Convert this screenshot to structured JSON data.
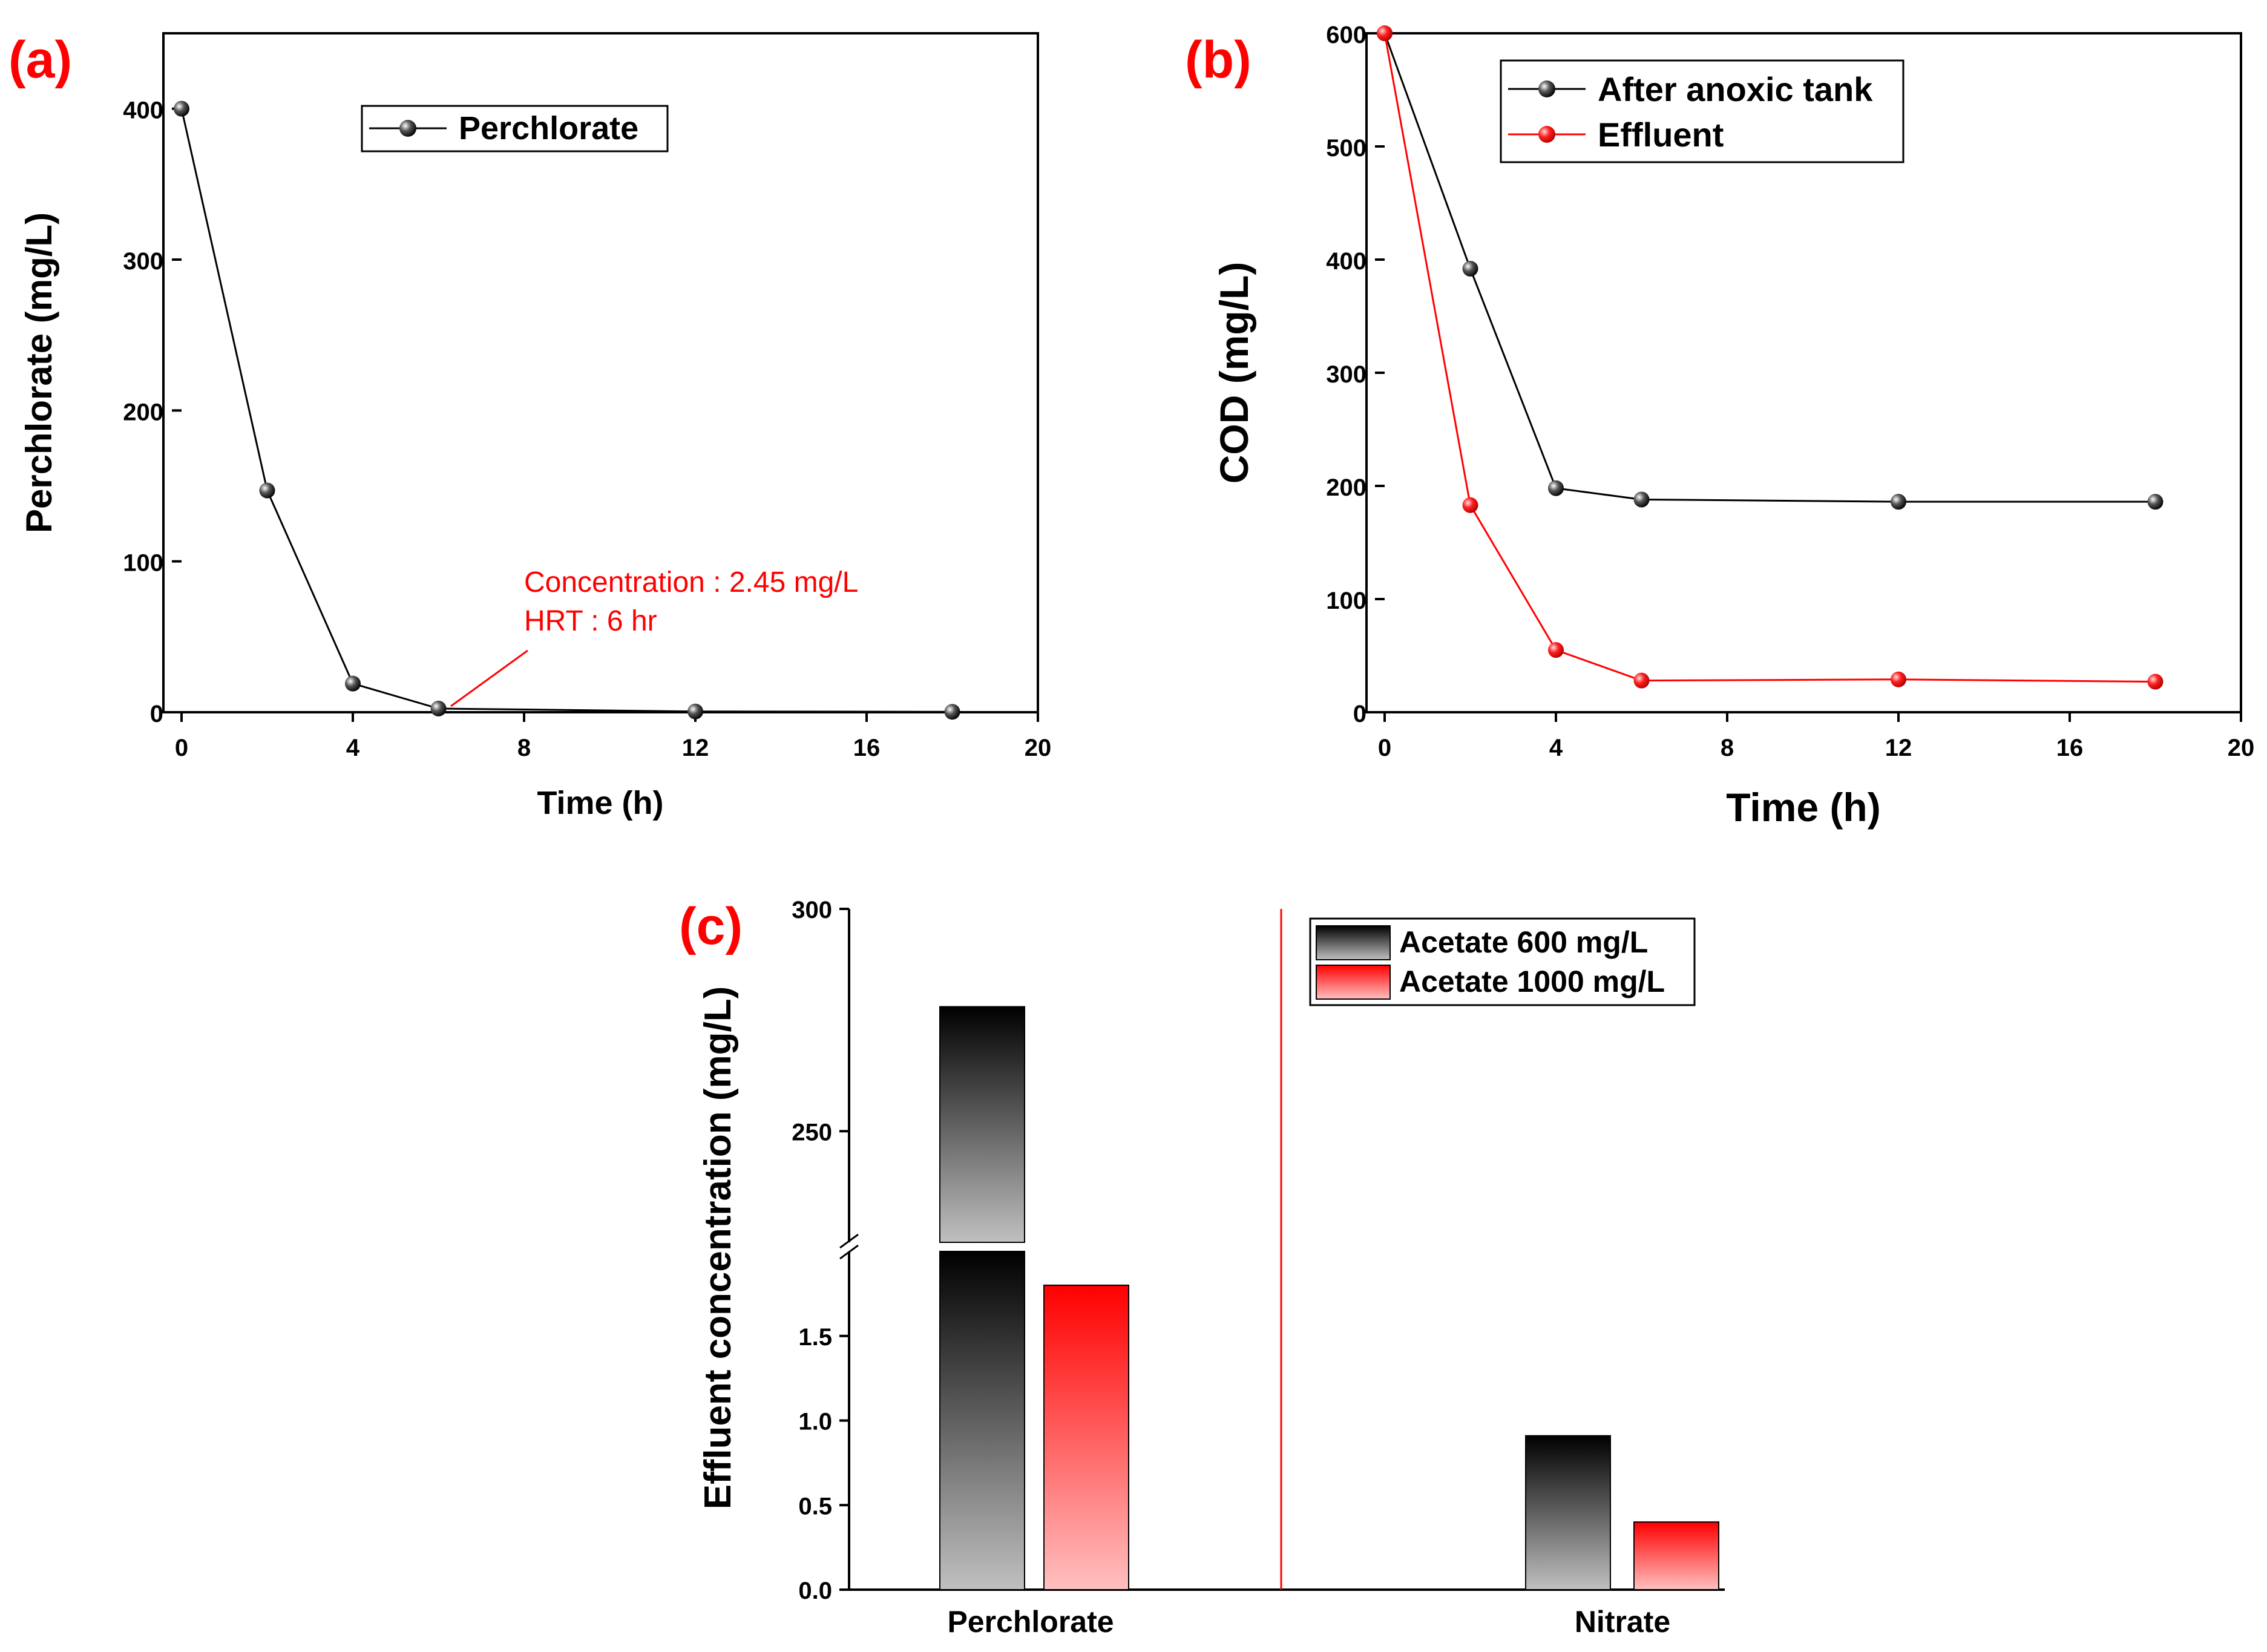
{
  "colors": {
    "black": "#000000",
    "red": "#ff0000",
    "gray_light": "#c0c0c0",
    "red_light": "#ffc0c0"
  },
  "chart_data": [
    {
      "panel_label": "(a)",
      "type": "line",
      "xlabel": "Time (h)",
      "ylabel": "Perchlorate (mg/L)",
      "xlim": [
        0,
        20
      ],
      "ylim": [
        0,
        450
      ],
      "xticks": [
        0,
        4,
        8,
        12,
        16,
        20
      ],
      "yticks": [
        0,
        100,
        200,
        300,
        400
      ],
      "legend_position": "top-center",
      "series": [
        {
          "name": "Perchlorate",
          "color": "#000000",
          "x": [
            0,
            2,
            4,
            6,
            12,
            18
          ],
          "y": [
            400,
            147,
            19,
            2.45,
            0.5,
            0.3
          ]
        }
      ],
      "annotation": {
        "lines": [
          "Concentration : 2.45 mg/L",
          "HRT : 6 hr"
        ],
        "color": "#ff0000",
        "points_to": {
          "x": 6,
          "y": 2.45
        }
      }
    },
    {
      "panel_label": "(b)",
      "type": "line",
      "xlabel": "Time (h)",
      "ylabel": "COD (mg/L)",
      "xlim": [
        0,
        20
      ],
      "ylim": [
        0,
        600
      ],
      "xticks": [
        0,
        4,
        8,
        12,
        16,
        20
      ],
      "yticks": [
        0,
        100,
        200,
        300,
        400,
        500,
        600
      ],
      "legend_position": "top-right",
      "series": [
        {
          "name": "After anoxic tank",
          "color": "#000000",
          "x": [
            0,
            2,
            4,
            6,
            12,
            18
          ],
          "y": [
            600,
            392,
            198,
            188,
            186,
            186
          ]
        },
        {
          "name": "Effluent",
          "color": "#ff0000",
          "x": [
            0,
            2,
            4,
            6,
            12,
            18
          ],
          "y": [
            600,
            183,
            55,
            28,
            29,
            27
          ]
        }
      ]
    },
    {
      "panel_label": "(c)",
      "type": "bar",
      "ylabel": "Effluent concentration (mg/L)",
      "categories": [
        "Perchlorate",
        "Nitrate"
      ],
      "broken_axis": {
        "lower": [
          0,
          2.0
        ],
        "upper": [
          225,
          300
        ]
      },
      "yticks_lower": [
        0.0,
        0.5,
        1.0,
        1.5
      ],
      "yticks_upper": [
        250,
        300
      ],
      "ytick_labels_lower": [
        "0.0",
        "0.5",
        "1.0",
        "1.5"
      ],
      "ytick_labels_upper": [
        "250",
        "300"
      ],
      "legend_position": "top-right",
      "series": [
        {
          "name": "Acetate 600 mg/L",
          "color": "#000000",
          "values": [
            278,
            0.91
          ]
        },
        {
          "name": "Acetate 1000 mg/L",
          "color": "#ff0000",
          "values": [
            1.8,
            0.4
          ]
        }
      ]
    }
  ]
}
